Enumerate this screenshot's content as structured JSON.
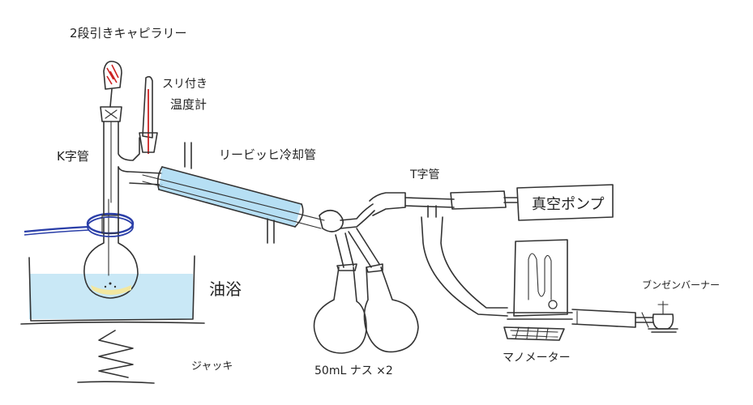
{
  "labels": {
    "title": "2段引きキャピラリー",
    "thermometer": [
      "スリ付き",
      "温度計"
    ],
    "tube_k": "K字管",
    "condenser": "リービッヒ冷却管",
    "tjoint": "T字管",
    "pump": "真空ポンプ",
    "oil_bath": "油浴",
    "flasks": "50mL ナス ×2",
    "manometer": "マノメーター",
    "burner": "ブンゼンバーナー",
    "jack": "ジャッキ"
  },
  "colors": {
    "ink": "#333333",
    "oil": "#bfe4f4",
    "condenser": "#a9d9f2",
    "clamp": "#2b3fa8",
    "bulb": "#cc2222",
    "liquid": "#f3e8a0"
  }
}
